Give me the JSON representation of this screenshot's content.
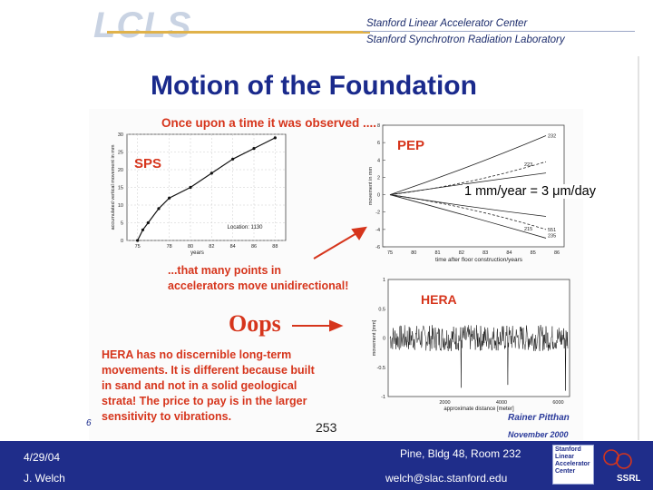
{
  "header": {
    "logo_text": "LCLS",
    "org_line1": "Stanford Linear Accelerator Center",
    "org_line2": "Stanford Synchrotron Radiation Laboratory"
  },
  "slide": {
    "title": "Motion of the Foundation",
    "observation_heading": "Once upon a time it was observed ....",
    "sps_label": "SPS",
    "pep_label": "PEP",
    "hera_label": "HERA",
    "unidirectional_note": "...that many points in accelerators move unidirectional!",
    "oops": "Oops",
    "hera_note": "HERA has no discernible long-term movements. It is different because built in sand and not in a solid geological strata! The price to pay is in the larger sensitivity to vibrations.",
    "rate_annotation": "1 mm/year = 3 μm/day",
    "inner_page_number": "6",
    "slide_number": "253",
    "author_credit": "Rainer Pitthan",
    "author_date": "November 2000"
  },
  "footer": {
    "date": "4/29/04",
    "presenter": "J. Welch",
    "location": "Pine, Bldg 48, Room 232",
    "email": "welch@slac.stanford.edu",
    "slac_logo_text": "Stanford Linear Accelerator Center",
    "ssrl_logo_text": "SSRL"
  },
  "chart_data": [
    {
      "type": "line",
      "title": "SPS",
      "xlabel": "years",
      "ylabel": "accumulated vertical movement in mm",
      "x_ticks": [
        "75",
        "78",
        "80",
        "82",
        "84",
        "86",
        "88"
      ],
      "y_ticks": [
        "0",
        "5",
        "10",
        "15",
        "20",
        "25",
        "30"
      ],
      "ylim": [
        0,
        30
      ],
      "annotation": "Location: 1130",
      "series": [
        {
          "x": [
            75,
            75.5,
            76,
            77,
            78,
            80,
            82,
            84,
            86,
            88
          ],
          "values": [
            0,
            3,
            5,
            9,
            12,
            15,
            19,
            23,
            26,
            29
          ]
        }
      ]
    },
    {
      "type": "line",
      "title": "PEP",
      "xlabel": "time after floor construction/years",
      "ylabel": "movement in mm",
      "x_ticks": [
        "75",
        "80",
        "81",
        "82",
        "83",
        "84",
        "85",
        "86"
      ],
      "y_ticks": [
        "8",
        "6",
        "4",
        "2",
        "0",
        "-2",
        "-4",
        "-6"
      ],
      "ylim": [
        -6,
        8
      ],
      "curve_labels": [
        "232",
        "223",
        "215",
        "551",
        "235"
      ]
    },
    {
      "type": "line",
      "title": "HERA",
      "xlabel": "approximate distance [meter]",
      "ylabel": "movement [mm]",
      "x_ticks": [
        "2000",
        "4000",
        "6000"
      ],
      "y_ticks": [
        "1",
        "0.5",
        "0",
        "-0.5",
        "-1"
      ],
      "ylim": [
        -1,
        1
      ]
    }
  ]
}
